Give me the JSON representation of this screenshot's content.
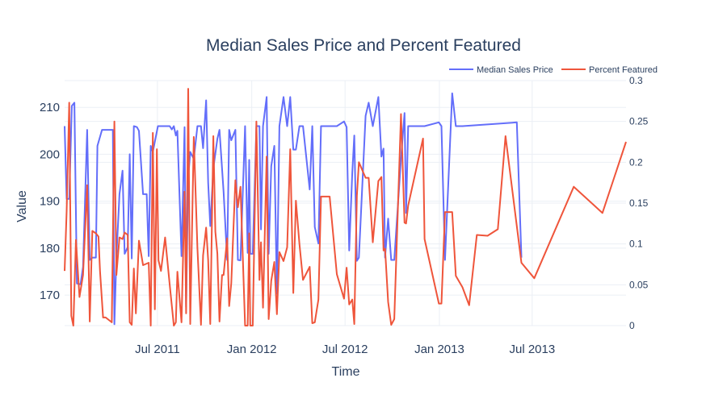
{
  "chart_data": {
    "type": "line",
    "title": "Median Sales Price and Percent Featured",
    "xlabel": "Time",
    "ylabel": "Value",
    "y2label": "",
    "xrange": [
      "2011-01-01",
      "2013-12-31"
    ],
    "ylim": [
      163.5,
      215.7
    ],
    "y2lim": [
      0,
      0.3
    ],
    "x_ticks": [
      {
        "label": "Jul 2011",
        "date": "2011-07-01"
      },
      {
        "label": "Jan 2012",
        "date": "2012-01-01"
      },
      {
        "label": "Jul 2012",
        "date": "2012-07-01"
      },
      {
        "label": "Jan 2013",
        "date": "2013-01-01"
      },
      {
        "label": "Jul 2013",
        "date": "2013-07-01"
      }
    ],
    "y_ticks": [
      170,
      180,
      190,
      200,
      210
    ],
    "y2_ticks": [
      0,
      0.05,
      0.1,
      0.15,
      0.2,
      0.25,
      0.3
    ],
    "y2_tick_labels": [
      "0",
      "0.05",
      "0.1",
      "0.15",
      "0.2",
      "0.25",
      "0.3"
    ],
    "legend_position": "top-right",
    "grid": true,
    "series": [
      {
        "name": "Median Sales Price",
        "axis": "y",
        "color": "#636efa",
        "points": [
          [
            "2011-01-01",
            206
          ],
          [
            "2011-01-05",
            190.5
          ],
          [
            "2011-01-10",
            190.5
          ],
          [
            "2011-01-15",
            210.3
          ],
          [
            "2011-01-20",
            211
          ],
          [
            "2011-01-25",
            172.5
          ],
          [
            "2011-02-01",
            172.3
          ],
          [
            "2011-02-06",
            176
          ],
          [
            "2011-02-14",
            205.2
          ],
          [
            "2011-02-19",
            177.5
          ],
          [
            "2011-02-24",
            178
          ],
          [
            "2011-03-03",
            178
          ],
          [
            "2011-03-06",
            201.8
          ],
          [
            "2011-03-15",
            205.2
          ],
          [
            "2011-04-05",
            205.2
          ],
          [
            "2011-04-08",
            163.8
          ],
          [
            "2011-04-12",
            178
          ],
          [
            "2011-04-18",
            191.5
          ],
          [
            "2011-04-24",
            196.5
          ],
          [
            "2011-04-28",
            178.8
          ],
          [
            "2011-05-04",
            180.2
          ],
          [
            "2011-05-08",
            200
          ],
          [
            "2011-05-12",
            177.8
          ],
          [
            "2011-05-16",
            206
          ],
          [
            "2011-05-22",
            205.8
          ],
          [
            "2011-05-26",
            205
          ],
          [
            "2011-06-03",
            191.5
          ],
          [
            "2011-06-10",
            191.5
          ],
          [
            "2011-06-14",
            178.3
          ],
          [
            "2011-06-18",
            201.8
          ],
          [
            "2011-06-22",
            200.5
          ],
          [
            "2011-07-02",
            206
          ],
          [
            "2011-07-16",
            206
          ],
          [
            "2011-07-25",
            206
          ],
          [
            "2011-07-29",
            205.3
          ],
          [
            "2011-08-02",
            206
          ],
          [
            "2011-08-06",
            204
          ],
          [
            "2011-08-09",
            205
          ],
          [
            "2011-08-17",
            178.3
          ],
          [
            "2011-08-23",
            205.8
          ],
          [
            "2011-08-26",
            167.5
          ],
          [
            "2011-08-30",
            195
          ],
          [
            "2011-09-03",
            200.5
          ],
          [
            "2011-09-10",
            199
          ],
          [
            "2011-09-17",
            206
          ],
          [
            "2011-09-24",
            206
          ],
          [
            "2011-09-28",
            201.3
          ],
          [
            "2011-10-04",
            211.5
          ],
          [
            "2011-10-08",
            194
          ],
          [
            "2011-10-12",
            184.7
          ],
          [
            "2011-10-18",
            197
          ],
          [
            "2011-10-26",
            203.3
          ],
          [
            "2011-10-30",
            205.2
          ],
          [
            "2011-11-07",
            192
          ],
          [
            "2011-11-14",
            177.5
          ],
          [
            "2011-11-18",
            205.2
          ],
          [
            "2011-11-22",
            203
          ],
          [
            "2011-11-30",
            205.2
          ],
          [
            "2011-12-05",
            177.5
          ],
          [
            "2011-12-10",
            177.4
          ],
          [
            "2011-12-19",
            206
          ],
          [
            "2011-12-24",
            179
          ],
          [
            "2011-12-27",
            198.8
          ],
          [
            "2011-12-29",
            178.8
          ],
          [
            "2012-01-03",
            178.8
          ],
          [
            "2012-01-10",
            206
          ],
          [
            "2012-01-16",
            206
          ],
          [
            "2012-01-19",
            184
          ],
          [
            "2012-01-23",
            206
          ],
          [
            "2012-01-30",
            212.2
          ],
          [
            "2012-02-03",
            178.8
          ],
          [
            "2012-02-08",
            197.5
          ],
          [
            "2012-02-14",
            201.8
          ],
          [
            "2012-02-19",
            170.3
          ],
          [
            "2012-02-24",
            206
          ],
          [
            "2012-03-03",
            212.2
          ],
          [
            "2012-03-10",
            206
          ],
          [
            "2012-03-16",
            212.2
          ],
          [
            "2012-03-22",
            201
          ],
          [
            "2012-03-27",
            201
          ],
          [
            "2012-04-03",
            206
          ],
          [
            "2012-04-10",
            206
          ],
          [
            "2012-04-23",
            192.5
          ],
          [
            "2012-04-28",
            206
          ],
          [
            "2012-05-03",
            184.5
          ],
          [
            "2012-05-10",
            181
          ],
          [
            "2012-05-15",
            206
          ],
          [
            "2012-06-01",
            206
          ],
          [
            "2012-06-15",
            206
          ],
          [
            "2012-06-29",
            207
          ],
          [
            "2012-07-04",
            205.8
          ],
          [
            "2012-07-09",
            179.5
          ],
          [
            "2012-07-15",
            196
          ],
          [
            "2012-07-19",
            204
          ],
          [
            "2012-07-24",
            177.3
          ],
          [
            "2012-07-28",
            178
          ],
          [
            "2012-08-10",
            208.2
          ],
          [
            "2012-08-16",
            211
          ],
          [
            "2012-08-24",
            206
          ],
          [
            "2012-09-04",
            212.2
          ],
          [
            "2012-09-10",
            199.5
          ],
          [
            "2012-09-14",
            201.2
          ],
          [
            "2012-09-17",
            178
          ],
          [
            "2012-09-23",
            186.3
          ],
          [
            "2012-09-29",
            177.5
          ],
          [
            "2012-10-05",
            177.5
          ],
          [
            "2012-10-18",
            199
          ],
          [
            "2012-10-25",
            208.8
          ],
          [
            "2012-10-28",
            187.5
          ],
          [
            "2012-11-01",
            206
          ],
          [
            "2012-11-30",
            206
          ],
          [
            "2012-12-03",
            206
          ],
          [
            "2012-12-31",
            206.8
          ],
          [
            "2013-01-05",
            206
          ],
          [
            "2013-01-12",
            177.5
          ],
          [
            "2013-01-26",
            213
          ],
          [
            "2013-02-02",
            206
          ],
          [
            "2013-02-15",
            206
          ],
          [
            "2013-06-01",
            206.8
          ],
          [
            "2013-06-10",
            178
          ]
        ]
      },
      {
        "name": "Percent Featured",
        "axis": "y2",
        "color": "#ef553b",
        "points": [
          [
            "2011-01-01",
            0.067
          ],
          [
            "2011-01-05",
            0.14
          ],
          [
            "2011-01-10",
            0.273
          ],
          [
            "2011-01-14",
            0.012
          ],
          [
            "2011-01-18",
            0
          ],
          [
            "2011-01-23",
            0.105
          ],
          [
            "2011-01-30",
            0.035
          ],
          [
            "2011-02-06",
            0.062
          ],
          [
            "2011-02-14",
            0.172
          ],
          [
            "2011-02-19",
            0.005
          ],
          [
            "2011-02-24",
            0.116
          ],
          [
            "2011-03-03",
            0.113
          ],
          [
            "2011-03-08",
            0.109
          ],
          [
            "2011-03-11",
            0.067
          ],
          [
            "2011-03-17",
            0.01
          ],
          [
            "2011-03-22",
            0.01
          ],
          [
            "2011-04-03",
            0.004
          ],
          [
            "2011-04-08",
            0.25
          ],
          [
            "2011-04-12",
            0.062
          ],
          [
            "2011-04-18",
            0.108
          ],
          [
            "2011-04-24",
            0.106
          ],
          [
            "2011-04-28",
            0.114
          ],
          [
            "2011-05-04",
            0.111
          ],
          [
            "2011-05-08",
            0.004
          ],
          [
            "2011-05-12",
            0.001
          ],
          [
            "2011-05-16",
            0.07
          ],
          [
            "2011-05-20",
            0.015
          ],
          [
            "2011-05-26",
            0.104
          ],
          [
            "2011-06-03",
            0.074
          ],
          [
            "2011-06-14",
            0.077
          ],
          [
            "2011-06-18",
            0
          ],
          [
            "2011-06-22",
            0.236
          ],
          [
            "2011-06-26",
            0.02
          ],
          [
            "2011-06-30",
            0.216
          ],
          [
            "2011-07-03",
            0.08
          ],
          [
            "2011-07-08",
            0.067
          ],
          [
            "2011-07-16",
            0.108
          ],
          [
            "2011-07-25",
            0.05
          ],
          [
            "2011-08-02",
            0
          ],
          [
            "2011-08-06",
            0.004
          ],
          [
            "2011-08-09",
            0.066
          ],
          [
            "2011-08-17",
            0.004
          ],
          [
            "2011-08-23",
            0.164
          ],
          [
            "2011-08-26",
            0.015
          ],
          [
            "2011-08-30",
            0.29
          ],
          [
            "2011-09-03",
            0.002
          ],
          [
            "2011-09-10",
            0.231
          ],
          [
            "2011-09-17",
            0.095
          ],
          [
            "2011-09-24",
            0.001
          ],
          [
            "2011-09-28",
            0.086
          ],
          [
            "2011-10-04",
            0.12
          ],
          [
            "2011-10-08",
            0.08
          ],
          [
            "2011-10-12",
            0.002
          ],
          [
            "2011-10-18",
            0.232
          ],
          [
            "2011-10-22",
            0.115
          ],
          [
            "2011-10-26",
            0.088
          ],
          [
            "2011-10-30",
            0.005
          ],
          [
            "2011-11-04",
            0.062
          ],
          [
            "2011-11-07",
            0.062
          ],
          [
            "2011-11-14",
            0.107
          ],
          [
            "2011-11-18",
            0.024
          ],
          [
            "2011-11-22",
            0.052
          ],
          [
            "2011-11-30",
            0.178
          ],
          [
            "2011-12-05",
            0.145
          ],
          [
            "2011-12-10",
            0.17
          ],
          [
            "2011-12-19",
            0
          ],
          [
            "2011-12-24",
            0
          ],
          [
            "2011-12-27",
            0.113
          ],
          [
            "2011-12-29",
            0
          ],
          [
            "2012-01-03",
            0
          ],
          [
            "2012-01-10",
            0.25
          ],
          [
            "2012-01-16",
            0.056
          ],
          [
            "2012-01-19",
            0.102
          ],
          [
            "2012-01-23",
            0.022
          ],
          [
            "2012-01-30",
            0.207
          ],
          [
            "2012-02-03",
            0.008
          ],
          [
            "2012-02-08",
            0.055
          ],
          [
            "2012-02-14",
            0.078
          ],
          [
            "2012-02-19",
            0.014
          ],
          [
            "2012-02-24",
            0.09
          ],
          [
            "2012-03-03",
            0.079
          ],
          [
            "2012-03-10",
            0.096
          ],
          [
            "2012-03-16",
            0.216
          ],
          [
            "2012-03-22",
            0.04
          ],
          [
            "2012-03-27",
            0.153
          ],
          [
            "2012-04-03",
            0.1
          ],
          [
            "2012-04-10",
            0.056
          ],
          [
            "2012-04-23",
            0.072
          ],
          [
            "2012-04-28",
            0.003
          ],
          [
            "2012-05-03",
            0.004
          ],
          [
            "2012-05-10",
            0.032
          ],
          [
            "2012-05-15",
            0.158
          ],
          [
            "2012-06-01",
            0.158
          ],
          [
            "2012-06-15",
            0.063
          ],
          [
            "2012-06-29",
            0.033
          ],
          [
            "2012-07-04",
            0.071
          ],
          [
            "2012-07-09",
            0.026
          ],
          [
            "2012-07-15",
            0.032
          ],
          [
            "2012-07-19",
            0.002
          ],
          [
            "2012-07-24",
            0.159
          ],
          [
            "2012-07-28",
            0.2
          ],
          [
            "2012-08-10",
            0.181
          ],
          [
            "2012-08-16",
            0.181
          ],
          [
            "2012-08-24",
            0.102
          ],
          [
            "2012-09-04",
            0.177
          ],
          [
            "2012-09-10",
            0.182
          ],
          [
            "2012-09-14",
            0.092
          ],
          [
            "2012-09-17",
            0.094
          ],
          [
            "2012-09-23",
            0.029
          ],
          [
            "2012-09-29",
            0.001
          ],
          [
            "2012-10-05",
            0.008
          ],
          [
            "2012-10-18",
            0.259
          ],
          [
            "2012-10-25",
            0.126
          ],
          [
            "2012-10-28",
            0.125
          ],
          [
            "2012-11-01",
            0.147
          ],
          [
            "2012-11-30",
            0.229
          ],
          [
            "2012-12-03",
            0.106
          ],
          [
            "2012-12-31",
            0.027
          ],
          [
            "2013-01-05",
            0.027
          ],
          [
            "2013-01-12",
            0.139
          ],
          [
            "2013-01-26",
            0.139
          ],
          [
            "2013-02-02",
            0.061
          ],
          [
            "2013-02-15",
            0.047
          ],
          [
            "2013-02-28",
            0.025
          ],
          [
            "2013-03-15",
            0.111
          ],
          [
            "2013-04-05",
            0.11
          ],
          [
            "2013-04-25",
            0.118
          ],
          [
            "2013-05-10",
            0.232
          ],
          [
            "2013-06-10",
            0.077
          ],
          [
            "2013-07-05",
            0.058
          ],
          [
            "2013-09-20",
            0.17
          ],
          [
            "2013-11-15",
            0.138
          ],
          [
            "2013-12-31",
            0.225
          ]
        ]
      }
    ]
  }
}
